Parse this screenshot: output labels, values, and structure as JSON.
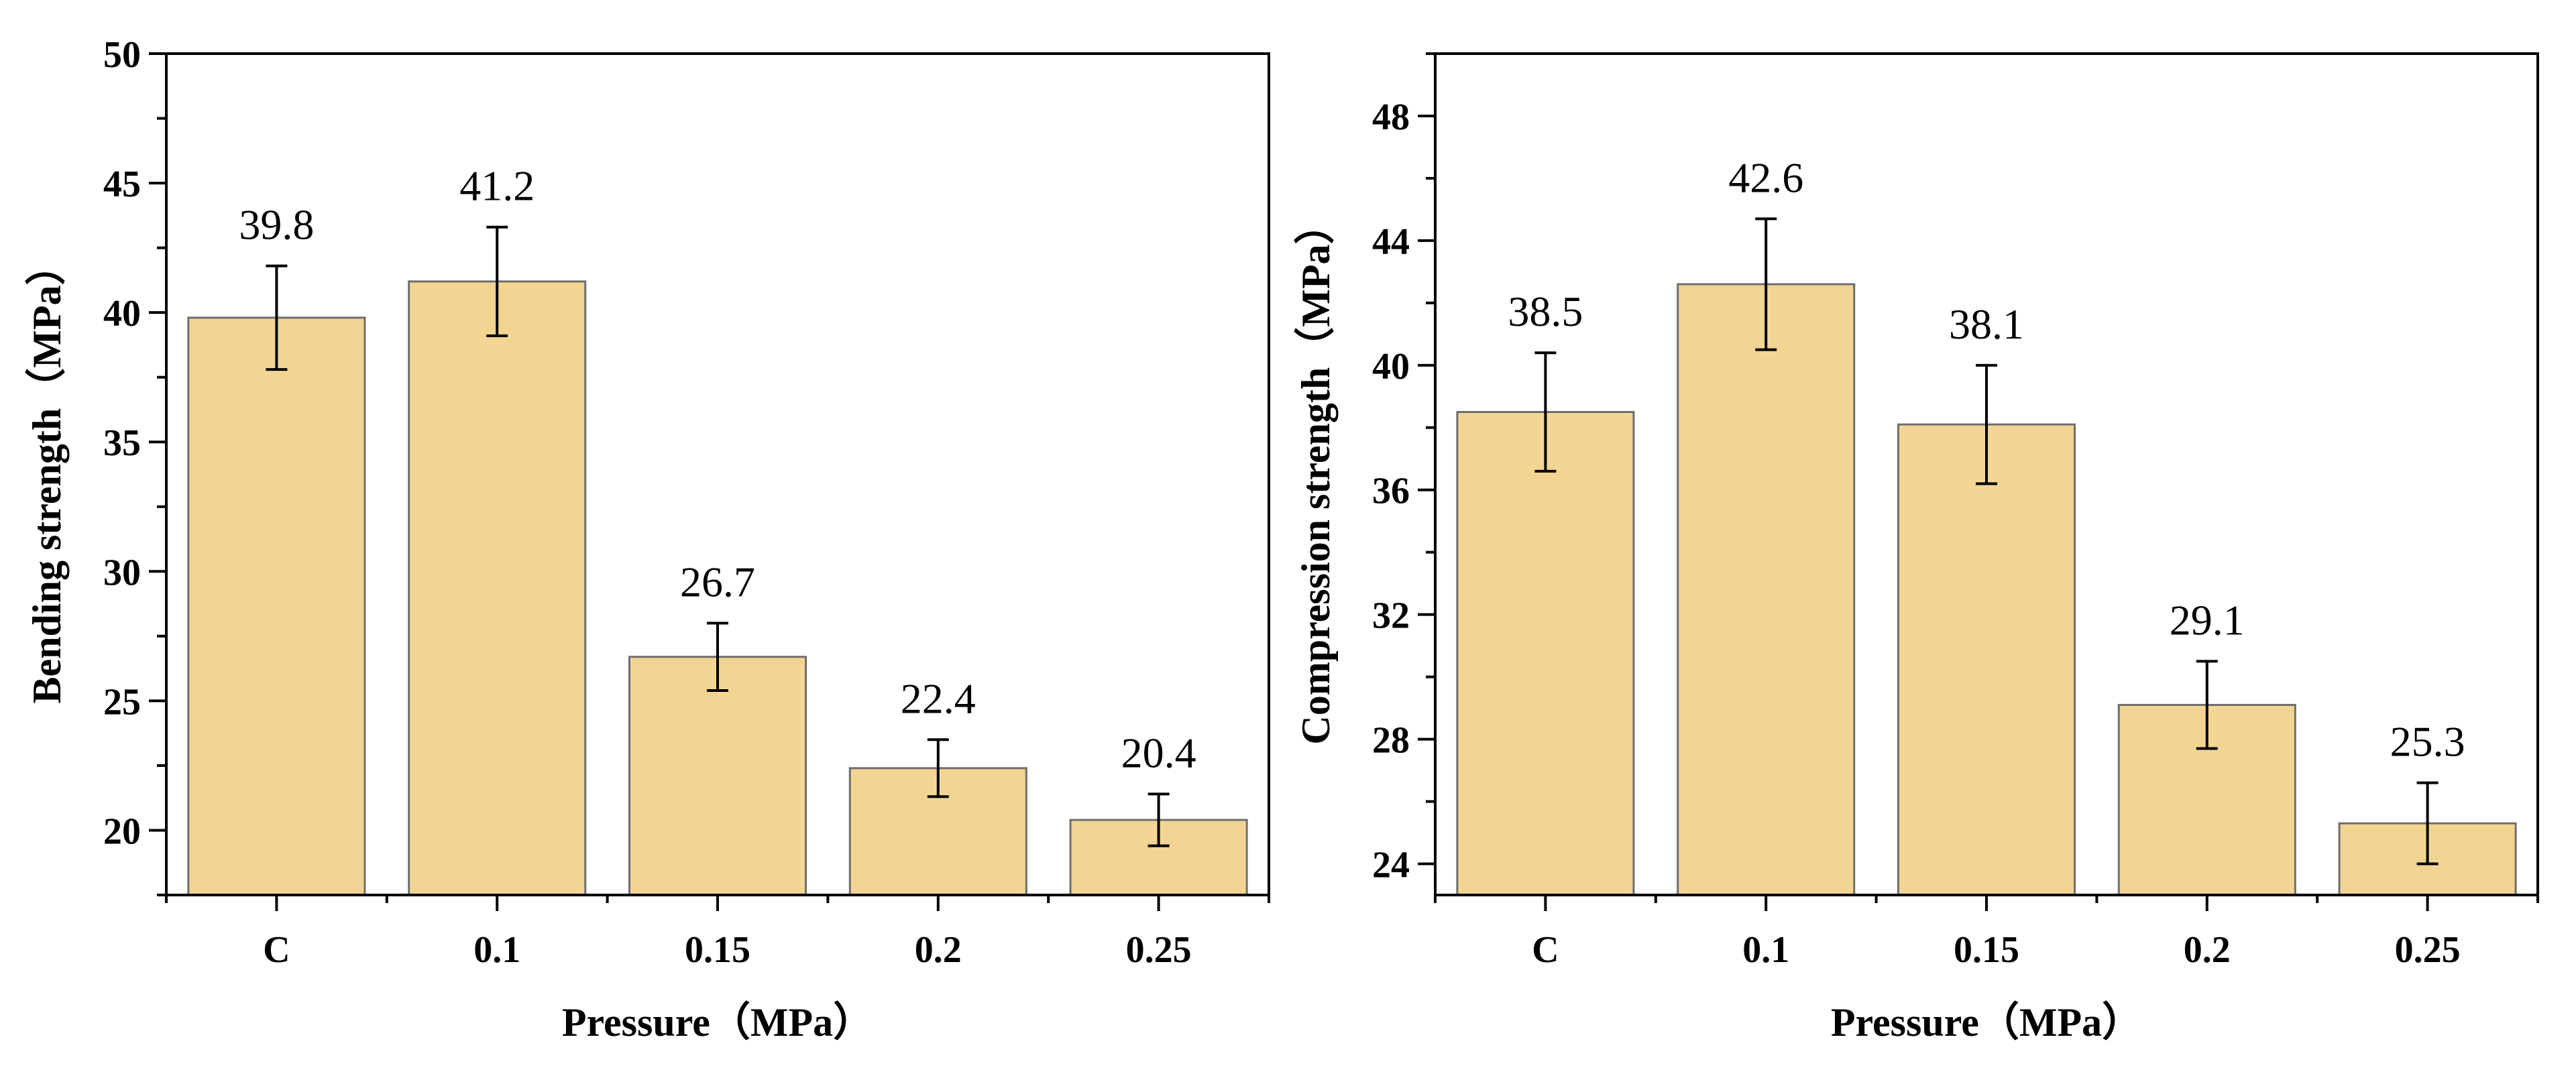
{
  "chart_data": [
    {
      "type": "bar",
      "categories": [
        "C",
        "0.1",
        "0.15",
        "0.2",
        "0.25"
      ],
      "values": [
        39.8,
        41.2,
        26.7,
        22.4,
        20.4
      ],
      "errors": [
        2.0,
        2.1,
        1.3,
        1.1,
        1.0
      ],
      "data_labels": [
        "39.8",
        "41.2",
        "26.7",
        "22.4",
        "20.4"
      ],
      "xlabel": "Pressure（MPa）",
      "ylabel": "Bending strength（MPa）",
      "ylim": [
        17.5,
        50
      ],
      "yticks": [
        20,
        25,
        30,
        35,
        40,
        45,
        50
      ],
      "ytick_labels": [
        "20",
        "25",
        "30",
        "35",
        "40",
        "45",
        "50"
      ],
      "ytick_minor_step": 2.5,
      "bar_color": "#f3d593",
      "edge_color": "#6e6e6e"
    },
    {
      "type": "bar",
      "categories": [
        "C",
        "0.1",
        "0.15",
        "0.2",
        "0.25"
      ],
      "values": [
        38.5,
        42.6,
        38.1,
        29.1,
        25.3
      ],
      "errors": [
        1.9,
        2.1,
        1.9,
        1.4,
        1.3
      ],
      "data_labels": [
        "38.5",
        "42.6",
        "38.1",
        "29.1",
        "25.3"
      ],
      "xlabel": "Pressure（MPa）",
      "ylabel": "Compression strength（MPa）",
      "ylim": [
        23,
        50
      ],
      "yticks": [
        24,
        28,
        32,
        36,
        40,
        44,
        48
      ],
      "ytick_labels": [
        "24",
        "28",
        "32",
        "36",
        "40",
        "44",
        "48"
      ],
      "ytick_minor_step": 2,
      "bar_color": "#f3d593",
      "edge_color": "#6e6e6e"
    }
  ]
}
